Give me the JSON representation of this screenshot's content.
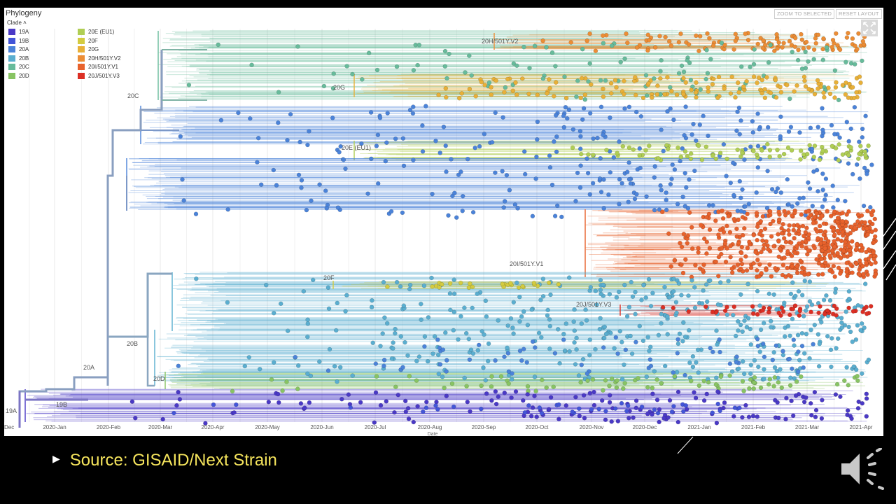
{
  "panel": {
    "title": "Phylogeny",
    "clade_header": "Clade",
    "zoom_to_selected": "ZOOM TO SELECTED",
    "reset_layout": "RESET LAYOUT",
    "x_axis_title": "Date"
  },
  "legend": [
    {
      "label": "19A",
      "color": "#4a39c6"
    },
    {
      "label": "19B",
      "color": "#4355d8"
    },
    {
      "label": "20A",
      "color": "#4b83d9"
    },
    {
      "label": "20B",
      "color": "#5aaed0"
    },
    {
      "label": "20C",
      "color": "#67bb9b"
    },
    {
      "label": "20D",
      "color": "#88c463"
    },
    {
      "label": "20E (EU1)",
      "color": "#b0ce54"
    },
    {
      "label": "20F",
      "color": "#d3cb40"
    },
    {
      "label": "20G",
      "color": "#e8b038"
    },
    {
      "label": "20H/501Y.V2",
      "color": "#ec8d35"
    },
    {
      "label": "20I/501Y.V1",
      "color": "#e8622c"
    },
    {
      "label": "20J/501Y.V3",
      "color": "#dc2f24"
    }
  ],
  "axis_ticks": [
    "Dec",
    "2020-Jan",
    "2020-Feb",
    "2020-Mar",
    "2020-Apr",
    "2020-May",
    "2020-Jun",
    "2020-Jul",
    "2020-Aug",
    "2020-Sep",
    "2020-Oct",
    "2020-Nov",
    "2020-Dec",
    "2021-Jan",
    "2021-Feb",
    "2021-Mar",
    "2021-Apr"
  ],
  "clade_labels": [
    "19A",
    "19B",
    "20A",
    "20B",
    "20C",
    "20D",
    "20E (EU1)",
    "20F",
    "20G",
    "20H/501Y.V2",
    "20I/501Y.V1",
    "20J/501Y.V3"
  ],
  "footer": {
    "source": "Source: GISAID/Next Strain",
    "bullet_icon": "triangle-bullet-icon",
    "audio_icon": "speaker-icon",
    "text_color": "#f5e45c"
  }
}
